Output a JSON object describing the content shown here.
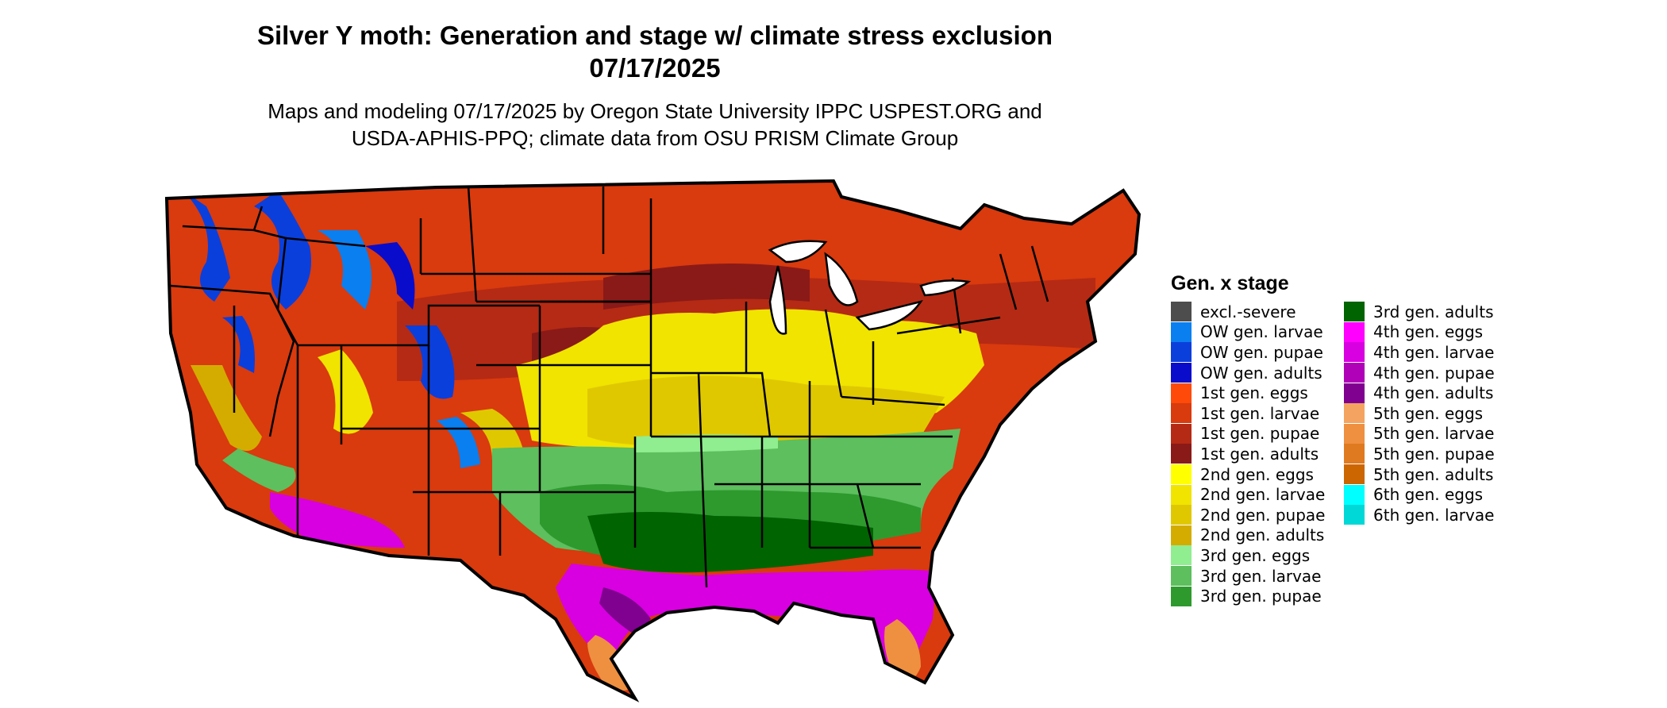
{
  "title_line1": "Silver Y moth: Generation and stage w/ climate stress exclusion",
  "title_line2": "07/17/2025",
  "subtitle_line1": "Maps and modeling 07/17/2025 by Oregon State University IPPC USPEST.ORG and",
  "subtitle_line2": "USDA-APHIS-PPQ; climate data from OSU PRISM Climate Group",
  "legend": {
    "title": "Gen. x stage",
    "items": [
      {
        "label": "excl.-severe",
        "color": "#4d4d4d"
      },
      {
        "label": "OW gen. larvae",
        "color": "#0a7ff0"
      },
      {
        "label": "OW gen. pupae",
        "color": "#0b3fdc"
      },
      {
        "label": "OW gen. adults",
        "color": "#0a0ccc"
      },
      {
        "label": "1st gen. eggs",
        "color": "#ff4a0a"
      },
      {
        "label": "1st gen. larvae",
        "color": "#d93a0e"
      },
      {
        "label": "1st gen. pupae",
        "color": "#b52a14"
      },
      {
        "label": "1st gen. adults",
        "color": "#8a1a18"
      },
      {
        "label": "2nd gen. eggs",
        "color": "#ffff00"
      },
      {
        "label": "2nd gen. larvae",
        "color": "#f0e400"
      },
      {
        "label": "2nd gen. pupae",
        "color": "#e0c800"
      },
      {
        "label": "2nd gen. adults",
        "color": "#d4ac00"
      },
      {
        "label": "3rd gen. eggs",
        "color": "#90ee90"
      },
      {
        "label": "3rd gen. larvae",
        "color": "#5dbf5d"
      },
      {
        "label": "3rd gen. pupae",
        "color": "#2e9a2e"
      },
      {
        "label": "3rd gen. adults",
        "color": "#006400"
      },
      {
        "label": "4th gen. eggs",
        "color": "#ff00ff"
      },
      {
        "label": "4th gen. larvae",
        "color": "#d800e0"
      },
      {
        "label": "4th gen. pupae",
        "color": "#b000b8"
      },
      {
        "label": "4th gen. adults",
        "color": "#800090"
      },
      {
        "label": "5th gen. eggs",
        "color": "#f4a460"
      },
      {
        "label": "5th gen. larvae",
        "color": "#ee9040"
      },
      {
        "label": "5th gen. pupae",
        "color": "#e07a20"
      },
      {
        "label": "5th gen. adults",
        "color": "#cc6600"
      },
      {
        "label": "6th gen. eggs",
        "color": "#00ffff"
      },
      {
        "label": "6th gen. larvae",
        "color": "#00d8d8"
      }
    ]
  }
}
